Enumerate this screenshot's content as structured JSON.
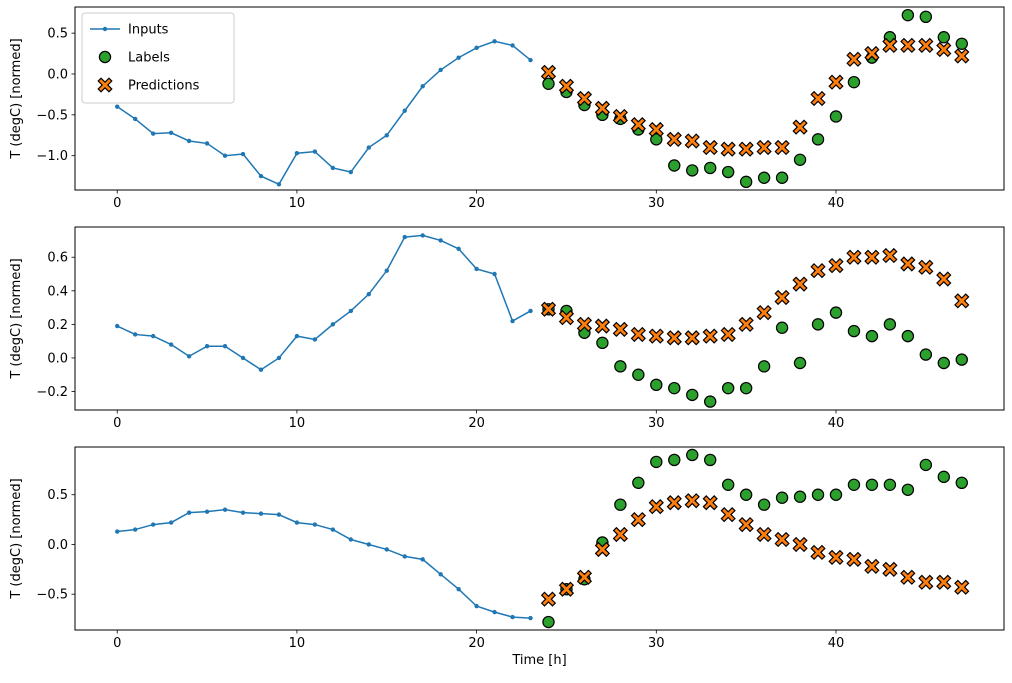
{
  "figure": {
    "background": "#ffffff",
    "xlabel": "Time [h]",
    "ylabel": "T (degC) [normed]",
    "colors": {
      "inputs": "#1f77b4",
      "labels": "#2ca02c",
      "predictions": "#ff7f0e",
      "marker_edge": "#000000",
      "axes_edge": "#000000",
      "legend_border": "#cccccc"
    },
    "legend": {
      "position": "upper-left-subplot-1",
      "items": [
        {
          "label": "Inputs",
          "type": "line-dot",
          "color": "#1f77b4"
        },
        {
          "label": "Labels",
          "type": "circle",
          "color": "#2ca02c"
        },
        {
          "label": "Predictions",
          "type": "x",
          "color": "#ff7f0e"
        }
      ]
    }
  },
  "chart_data": [
    {
      "type": "line",
      "title": "",
      "xlabel": "",
      "ylabel": "T (degC) [normed]",
      "xlim": [
        -2.35,
        49.35
      ],
      "ylim": [
        -1.42,
        0.82
      ],
      "xticks": [
        0,
        10,
        20,
        30,
        40
      ],
      "yticks": [
        0.5,
        0.0,
        -0.5,
        -1.0
      ],
      "grid": false,
      "series": [
        {
          "name": "Inputs",
          "type": "line",
          "marker": "dot",
          "color": "#1f77b4",
          "x": [
            0,
            1,
            2,
            3,
            4,
            5,
            6,
            7,
            8,
            9,
            10,
            11,
            12,
            13,
            14,
            15,
            16,
            17,
            18,
            19,
            20,
            21,
            22,
            23
          ],
          "y": [
            -0.4,
            -0.55,
            -0.73,
            -0.72,
            -0.82,
            -0.85,
            -1.0,
            -0.98,
            -1.25,
            -1.35,
            -0.97,
            -0.95,
            -1.15,
            -1.2,
            -0.9,
            -0.75,
            -0.45,
            -0.15,
            0.05,
            0.2,
            0.32,
            0.4,
            0.35,
            0.17
          ]
        },
        {
          "name": "Labels",
          "type": "scatter",
          "marker": "circle",
          "color": "#2ca02c",
          "edge": "#000000",
          "x": [
            24,
            25,
            26,
            27,
            28,
            29,
            30,
            31,
            32,
            33,
            34,
            35,
            36,
            37,
            38,
            39,
            40,
            41,
            42,
            43,
            44,
            45,
            46,
            47
          ],
          "y": [
            -0.12,
            -0.22,
            -0.38,
            -0.5,
            -0.55,
            -0.68,
            -0.8,
            -1.12,
            -1.18,
            -1.15,
            -1.2,
            -1.32,
            -1.27,
            -1.27,
            -1.05,
            -0.8,
            -0.52,
            -0.1,
            0.2,
            0.45,
            0.72,
            0.7,
            0.45,
            0.37
          ]
        },
        {
          "name": "Predictions",
          "type": "scatter",
          "marker": "X",
          "color": "#ff7f0e",
          "edge": "#000000",
          "x": [
            24,
            25,
            26,
            27,
            28,
            29,
            30,
            31,
            32,
            33,
            34,
            35,
            36,
            37,
            38,
            39,
            40,
            41,
            42,
            43,
            44,
            45,
            46,
            47
          ],
          "y": [
            0.02,
            -0.15,
            -0.3,
            -0.42,
            -0.52,
            -0.62,
            -0.68,
            -0.8,
            -0.82,
            -0.9,
            -0.92,
            -0.92,
            -0.9,
            -0.9,
            -0.65,
            -0.3,
            -0.1,
            0.18,
            0.25,
            0.35,
            0.35,
            0.35,
            0.3,
            0.22
          ]
        }
      ]
    },
    {
      "type": "line",
      "title": "",
      "xlabel": "",
      "ylabel": "T (degC) [normed]",
      "xlim": [
        -2.35,
        49.35
      ],
      "ylim": [
        -0.31,
        0.78
      ],
      "xticks": [
        0,
        10,
        20,
        30,
        40
      ],
      "yticks": [
        0.6,
        0.4,
        0.2,
        0.0,
        -0.2
      ],
      "grid": false,
      "series": [
        {
          "name": "Inputs",
          "type": "line",
          "marker": "dot",
          "color": "#1f77b4",
          "x": [
            0,
            1,
            2,
            3,
            4,
            5,
            6,
            7,
            8,
            9,
            10,
            11,
            12,
            13,
            14,
            15,
            16,
            17,
            18,
            19,
            20,
            21,
            22,
            23
          ],
          "y": [
            0.19,
            0.14,
            0.13,
            0.08,
            0.01,
            0.07,
            0.07,
            0.0,
            -0.07,
            0.0,
            0.13,
            0.11,
            0.2,
            0.28,
            0.38,
            0.52,
            0.72,
            0.73,
            0.7,
            0.65,
            0.53,
            0.5,
            0.22,
            0.28
          ]
        },
        {
          "name": "Labels",
          "type": "scatter",
          "marker": "circle",
          "color": "#2ca02c",
          "edge": "#000000",
          "x": [
            24,
            25,
            26,
            27,
            28,
            29,
            30,
            31,
            32,
            33,
            34,
            35,
            36,
            37,
            38,
            39,
            40,
            41,
            42,
            43,
            44,
            45,
            46,
            47
          ],
          "y": [
            0.29,
            0.28,
            0.15,
            0.09,
            -0.05,
            -0.1,
            -0.16,
            -0.18,
            -0.22,
            -0.26,
            -0.18,
            -0.18,
            -0.05,
            0.18,
            -0.03,
            0.2,
            0.27,
            0.16,
            0.13,
            0.2,
            0.13,
            0.02,
            -0.03,
            -0.01
          ]
        },
        {
          "name": "Predictions",
          "type": "scatter",
          "marker": "X",
          "color": "#ff7f0e",
          "edge": "#000000",
          "x": [
            24,
            25,
            26,
            27,
            28,
            29,
            30,
            31,
            32,
            33,
            34,
            35,
            36,
            37,
            38,
            39,
            40,
            41,
            42,
            43,
            44,
            45,
            46,
            47
          ],
          "y": [
            0.29,
            0.24,
            0.2,
            0.19,
            0.17,
            0.14,
            0.13,
            0.12,
            0.12,
            0.13,
            0.14,
            0.2,
            0.27,
            0.36,
            0.44,
            0.52,
            0.55,
            0.6,
            0.6,
            0.61,
            0.56,
            0.54,
            0.47,
            0.34
          ]
        }
      ]
    },
    {
      "type": "line",
      "title": "",
      "xlabel": "Time [h]",
      "ylabel": "T (degC) [normed]",
      "xlim": [
        -2.35,
        49.35
      ],
      "ylim": [
        -0.86,
        0.98
      ],
      "xticks": [
        0,
        10,
        20,
        30,
        40
      ],
      "yticks": [
        0.5,
        0.0,
        -0.5
      ],
      "grid": false,
      "series": [
        {
          "name": "Inputs",
          "type": "line",
          "marker": "dot",
          "color": "#1f77b4",
          "x": [
            0,
            1,
            2,
            3,
            4,
            5,
            6,
            7,
            8,
            9,
            10,
            11,
            12,
            13,
            14,
            15,
            16,
            17,
            18,
            19,
            20,
            21,
            22,
            23
          ],
          "y": [
            0.13,
            0.15,
            0.2,
            0.22,
            0.32,
            0.33,
            0.35,
            0.32,
            0.31,
            0.3,
            0.22,
            0.2,
            0.15,
            0.05,
            0.0,
            -0.05,
            -0.12,
            -0.15,
            -0.3,
            -0.45,
            -0.62,
            -0.68,
            -0.73,
            -0.74
          ]
        },
        {
          "name": "Labels",
          "type": "scatter",
          "marker": "circle",
          "color": "#2ca02c",
          "edge": "#000000",
          "x": [
            24,
            25,
            26,
            27,
            28,
            29,
            30,
            31,
            32,
            33,
            34,
            35,
            36,
            37,
            38,
            39,
            40,
            41,
            42,
            43,
            44,
            45,
            46,
            47
          ],
          "y": [
            -0.78,
            -0.45,
            -0.35,
            0.02,
            0.4,
            0.62,
            0.83,
            0.85,
            0.9,
            0.85,
            0.6,
            0.5,
            0.4,
            0.47,
            0.48,
            0.5,
            0.5,
            0.6,
            0.6,
            0.6,
            0.55,
            0.8,
            0.68,
            0.62
          ]
        },
        {
          "name": "Predictions",
          "type": "scatter",
          "marker": "X",
          "color": "#ff7f0e",
          "edge": "#000000",
          "x": [
            24,
            25,
            26,
            27,
            28,
            29,
            30,
            31,
            32,
            33,
            34,
            35,
            36,
            37,
            38,
            39,
            40,
            41,
            42,
            43,
            44,
            45,
            46,
            47
          ],
          "y": [
            -0.55,
            -0.45,
            -0.33,
            -0.05,
            0.1,
            0.25,
            0.38,
            0.42,
            0.44,
            0.42,
            0.3,
            0.2,
            0.1,
            0.05,
            0.0,
            -0.08,
            -0.13,
            -0.15,
            -0.22,
            -0.25,
            -0.33,
            -0.38,
            -0.38,
            -0.43
          ]
        }
      ]
    }
  ]
}
